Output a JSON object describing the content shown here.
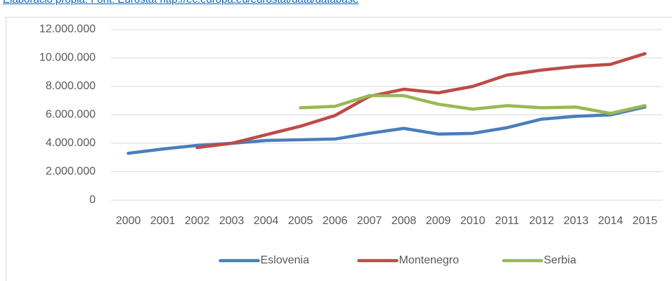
{
  "source": "Elaboració pròpia. Font: Eurostat http://ec.europa.eu/eurostat/data/database",
  "chart_data": {
    "type": "line",
    "categories": [
      "2000",
      "2001",
      "2002",
      "2003",
      "2004",
      "2005",
      "2006",
      "2007",
      "2008",
      "2009",
      "2010",
      "2011",
      "2012",
      "2013",
      "2014",
      "2015"
    ],
    "series": [
      {
        "name": "Eslovenia",
        "color": "#4a7ebb",
        "values": [
          3300000,
          3600000,
          3850000,
          4000000,
          4200000,
          4250000,
          4300000,
          4700000,
          5050000,
          4650000,
          4700000,
          5100000,
          5700000,
          5900000,
          6000000,
          6550000
        ]
      },
      {
        "name": "Montenegro",
        "color": "#be4b48",
        "values": [
          null,
          null,
          3700000,
          4000000,
          4600000,
          5200000,
          5950000,
          7300000,
          7800000,
          7550000,
          8000000,
          8800000,
          9150000,
          9400000,
          9550000,
          10300000
        ]
      },
      {
        "name": "Serbia",
        "color": "#98b954",
        "values": [
          null,
          null,
          null,
          null,
          null,
          6500000,
          6600000,
          7350000,
          7350000,
          6750000,
          6400000,
          6650000,
          6500000,
          6550000,
          6100000,
          6650000
        ]
      }
    ],
    "ylim": [
      0,
      12000000
    ],
    "yticks": [
      0,
      {
        "value": 2000000,
        "label": "2.000.000"
      },
      {
        "value": 4000000,
        "label": "4.000.000"
      },
      {
        "value": 6000000,
        "label": "6.000.000"
      },
      {
        "value": 8000000,
        "label": "8.000.000"
      },
      {
        "value": 10000000,
        "label": "10.000.000"
      },
      {
        "value": 12000000,
        "label": "12.000.000"
      }
    ],
    "grid": true,
    "legend": "bottom"
  }
}
